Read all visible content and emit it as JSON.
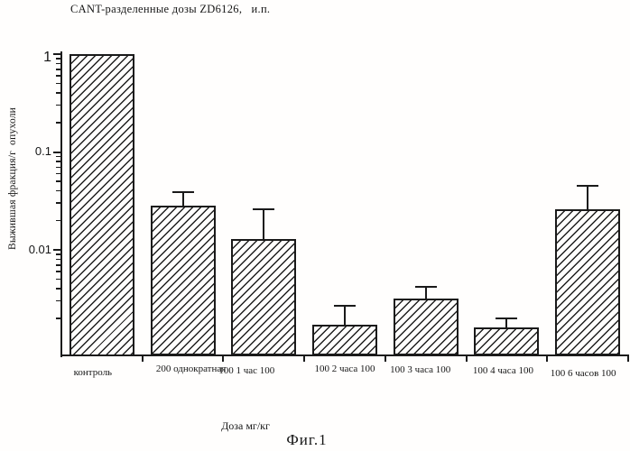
{
  "figure": {
    "caption": "Фиг.1"
  },
  "chart_data": {
    "type": "bar",
    "title": "CANT-разделенные дозы ZD6126,   и.п.",
    "xlabel": "Доза мг/кг",
    "ylabel": "Выжившая фракция/г  опухоли",
    "y_scale": "log",
    "ylim": [
      0.00085,
      1.1
    ],
    "y_tick_labels": [
      "1",
      "0.1",
      "0.01"
    ],
    "y_tick_values": [
      1,
      0.1,
      0.01
    ],
    "grid": false,
    "legend": "none",
    "bar_style": {
      "fill": "diagonal-hatch",
      "hatch_direction": "/",
      "ink_color": "#1a1a1a",
      "background_color": "#ffffff"
    },
    "categories": [
      "контроль",
      "200 однократная",
      "100 1 час 100",
      "100 2 часа 100",
      "100 3 часа 100",
      "100 4 часа 100",
      "100 6 часов 100"
    ],
    "values": [
      1.0,
      0.028,
      0.013,
      0.0017,
      0.0032,
      0.0016,
      0.026
    ],
    "error_bar_top": [
      null,
      0.039,
      0.026,
      0.0027,
      0.0042,
      0.002,
      0.045
    ]
  }
}
